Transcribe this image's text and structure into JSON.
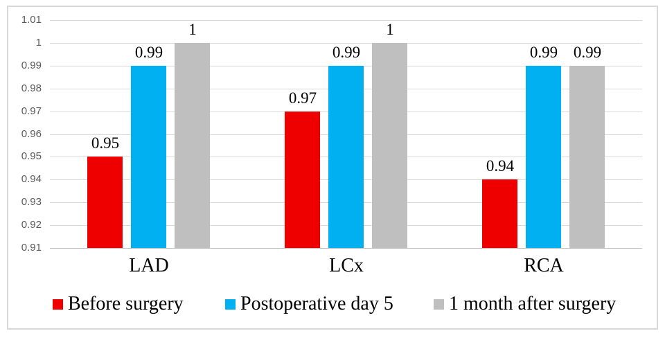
{
  "chart_data": {
    "type": "bar",
    "title": "",
    "xlabel": "",
    "ylabel": "",
    "categories": [
      "LAD",
      "LCx",
      "RCA"
    ],
    "series": [
      {
        "name": "Before surgery",
        "color": "#EE0000",
        "values": [
          0.95,
          0.97,
          0.94
        ],
        "labels": [
          "0.95",
          "0.97",
          "0.94"
        ]
      },
      {
        "name": "Postoperative day 5",
        "color": "#00B0F0",
        "values": [
          0.99,
          0.99,
          0.99
        ],
        "labels": [
          "0.99",
          "0.99",
          "0.99"
        ]
      },
      {
        "name": "1 month after surgery",
        "color": "#BFBFBF",
        "values": [
          1.0,
          1.0,
          0.99
        ],
        "labels": [
          "1",
          "1",
          "0.99"
        ]
      }
    ],
    "y_axis": {
      "min": 0.91,
      "max": 1.01,
      "step": 0.01,
      "tick_labels_top_to_bottom": [
        "1.01",
        "1",
        "0.99",
        "0.98",
        "0.97",
        "0.96",
        "0.95",
        "0.94",
        "0.93",
        "0.92",
        "0.91"
      ]
    },
    "grid": true,
    "legend_position": "bottom",
    "colors": {
      "gridline": "#D9D9D9",
      "axis_line": "#BFBFBF",
      "tick_label_text": "#595959",
      "data_label_text": "#000000",
      "frame_border": "#D9D9D9",
      "background": "#FFFFFF"
    }
  }
}
